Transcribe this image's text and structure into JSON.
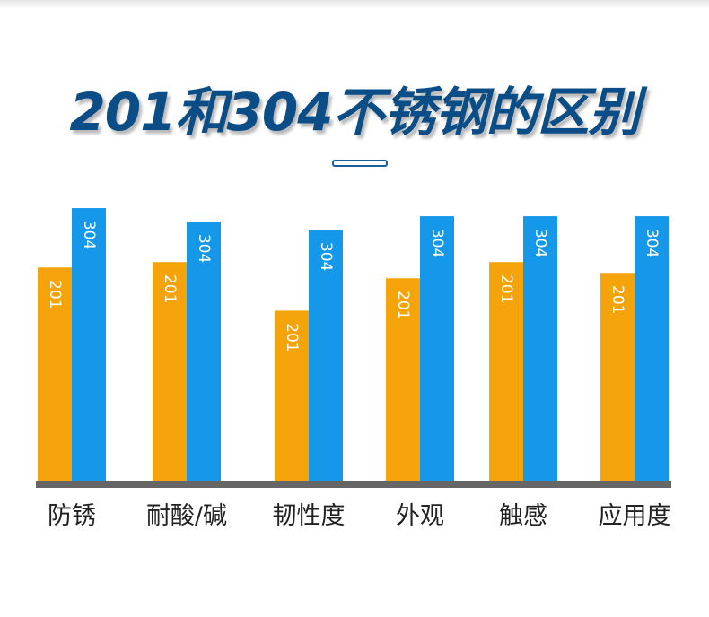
{
  "title": "201和304不锈钢的区别",
  "colors": {
    "s201": "#f5a30a",
    "s304": "#1597ea",
    "axis": "#666666",
    "title": "#0b4d86"
  },
  "chart_data": {
    "type": "bar",
    "title": "201和304不锈钢的区别",
    "categories": [
      "防锈",
      "耐酸/碱",
      "韧性度",
      "外观",
      "触感",
      "应用度"
    ],
    "series": [
      {
        "name": "201",
        "values": [
          79,
          81,
          63,
          75,
          81,
          77
        ]
      },
      {
        "name": "304",
        "values": [
          101,
          96,
          93,
          98,
          98,
          98
        ]
      }
    ],
    "ylim": [
      0,
      105
    ],
    "xlabel": "",
    "ylabel": "",
    "grid": false,
    "legend": "none"
  }
}
